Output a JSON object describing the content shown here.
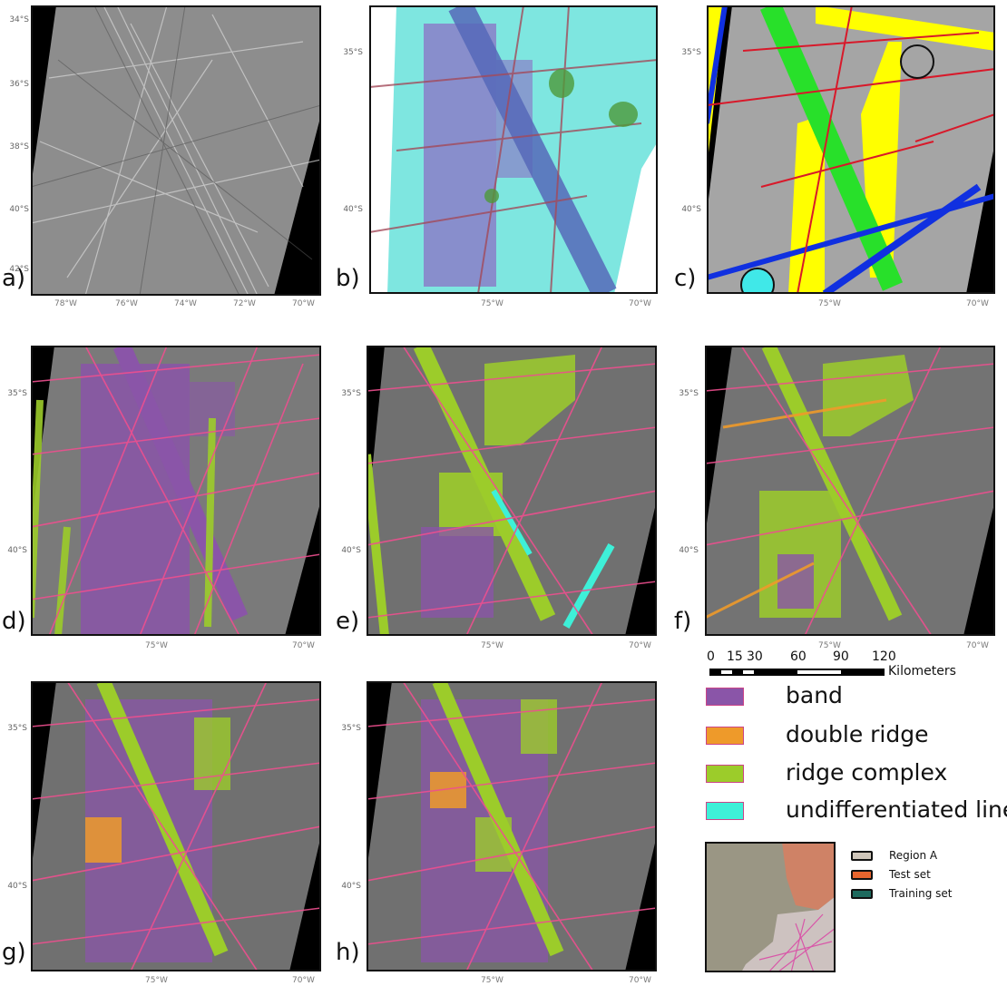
{
  "panels": [
    {
      "label": "a)",
      "lats": [
        "34°S",
        "36°S",
        "38°S",
        "40°S",
        "42°S"
      ],
      "lons": [
        "78°W",
        "76°W",
        "74°W",
        "72°W",
        "70°W"
      ]
    },
    {
      "label": "b)",
      "lats": [
        "35°S",
        "40°S"
      ],
      "lons": [
        "75°W",
        "70°W"
      ]
    },
    {
      "label": "c)",
      "lats": [
        "35°S",
        "40°S"
      ],
      "lons": [
        "75°W",
        "70°W"
      ]
    },
    {
      "label": "d)",
      "lats": [
        "35°S",
        "40°S"
      ],
      "lons": [
        "75°W",
        "70°W"
      ]
    },
    {
      "label": "e)",
      "lats": [
        "35°S",
        "40°S"
      ],
      "lons": [
        "75°W",
        "70°W"
      ]
    },
    {
      "label": "f)",
      "lats": [
        "35°S",
        "40°S"
      ],
      "lons": [
        "75°W",
        "70°W"
      ]
    },
    {
      "label": "g)",
      "lats": [
        "35°S",
        "40°S"
      ],
      "lons": [
        "75°W",
        "70°W"
      ]
    },
    {
      "label": "h)",
      "lats": [
        "35°S",
        "40°S"
      ],
      "lons": [
        "75°W",
        "70°W"
      ]
    }
  ],
  "scale_bar": {
    "ticks": [
      "0",
      "15",
      "30",
      "60",
      "90",
      "120"
    ],
    "unit": "Kilometers"
  },
  "legend": [
    {
      "label": "band",
      "color": "#8a55a8"
    },
    {
      "label": "double ridge",
      "color": "#ee9a2a"
    },
    {
      "label": "ridge complex",
      "color": "#9ccc2a"
    },
    {
      "label": "undifferentiated linea",
      "color": "#3ef0d8"
    }
  ],
  "inset_legend": [
    {
      "label": "Region A",
      "color": "#cfc6ba"
    },
    {
      "label": "Test set",
      "color": "#e8652e"
    },
    {
      "label": "Training set",
      "color": "#1e6a5e"
    }
  ],
  "colors": {
    "band": "#8a55a8",
    "double_ridge": "#ee9a2a",
    "ridge_complex": "#9ccc2a",
    "linea": "#3ef0d8",
    "lineament": "#ee4f8f"
  }
}
